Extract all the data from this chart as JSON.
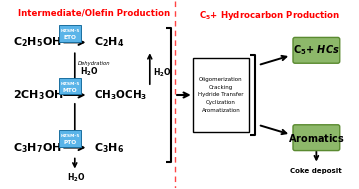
{
  "bg_color": "#ffffff",
  "title_color": "#ff0000",
  "catalyst_bg": "#5ab4e8",
  "catalyst_border": "#1a6fa0",
  "green_box_bg": "#8db86a",
  "green_box_border": "#5a8a30",
  "divider_color": "#ff4444",
  "title_left": "Intermediate/Olefin Production",
  "title_right": "C$_5$+ Hydrocarbon Production",
  "process_box_text": "Oligomerization\nCracking\nHydride Transfer\nCyclization\nAromatization",
  "coke_label": "Coke deposit"
}
